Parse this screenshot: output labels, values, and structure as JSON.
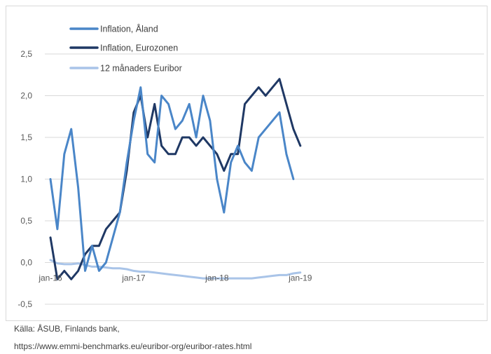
{
  "chart_data": {
    "type": "line",
    "title": "",
    "xlabel": "",
    "ylabel": "",
    "ylim": [
      -0.5,
      2.5
    ],
    "yticks": [
      "2,5",
      "2,0",
      "1,5",
      "1,0",
      "0,5",
      "0,0",
      "-0,5"
    ],
    "ytick_values": [
      2.5,
      2.0,
      1.5,
      1.0,
      0.5,
      0.0,
      -0.5
    ],
    "x_tick_labels": [
      "jan-16",
      "jan-17",
      "jan-18",
      "jan-19"
    ],
    "x_tick_positions": [
      0,
      12,
      24,
      36
    ],
    "grid": true,
    "legend_position": "top-left",
    "series": [
      {
        "name": "Inflation, Åland",
        "color": "#4a86c8",
        "values": [
          1.0,
          0.4,
          1.3,
          1.6,
          0.9,
          -0.1,
          0.2,
          -0.1,
          0.0,
          0.3,
          0.6,
          1.2,
          1.7,
          2.1,
          1.3,
          1.2,
          2.0,
          1.9,
          1.6,
          1.7,
          1.9,
          1.5,
          2.0,
          1.7,
          1.0,
          0.6,
          1.2,
          1.4,
          1.2,
          1.1,
          1.5,
          1.6,
          1.7,
          1.8,
          1.3,
          1.0
        ]
      },
      {
        "name": "Inflation, Eurozonen",
        "color": "#1f3864",
        "values": [
          0.3,
          -0.2,
          -0.1,
          -0.2,
          -0.1,
          0.1,
          0.2,
          0.2,
          0.4,
          0.5,
          0.6,
          1.1,
          1.8,
          2.0,
          1.5,
          1.9,
          1.4,
          1.3,
          1.3,
          1.5,
          1.5,
          1.4,
          1.5,
          1.4,
          1.3,
          1.1,
          1.3,
          1.3,
          1.9,
          2.0,
          2.1,
          2.0,
          2.1,
          2.2,
          1.9,
          1.6,
          1.4
        ]
      },
      {
        "name": "12 månaders Euribor",
        "color": "#a9c4e8",
        "values": [
          0.03,
          -0.01,
          -0.02,
          -0.02,
          -0.01,
          -0.03,
          -0.05,
          -0.05,
          -0.06,
          -0.07,
          -0.07,
          -0.08,
          -0.1,
          -0.11,
          -0.11,
          -0.12,
          -0.13,
          -0.14,
          -0.15,
          -0.16,
          -0.17,
          -0.18,
          -0.19,
          -0.19,
          -0.19,
          -0.19,
          -0.19,
          -0.19,
          -0.19,
          -0.19,
          -0.18,
          -0.17,
          -0.16,
          -0.15,
          -0.15,
          -0.13,
          -0.12
        ]
      }
    ]
  },
  "source": {
    "line1": "Källa: ÅSUB, Finlands bank,",
    "line2": "https://www.emmi-benchmarks.eu/euribor-org/euribor-rates.html"
  }
}
